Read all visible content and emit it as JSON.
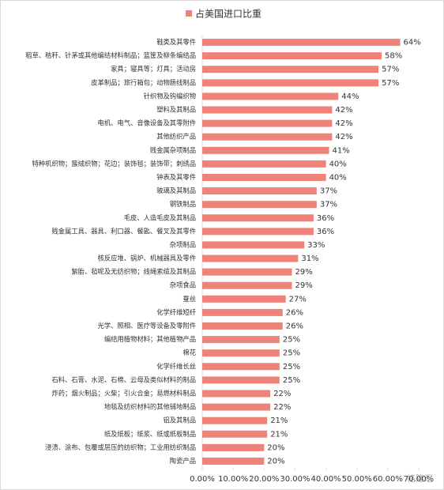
{
  "chart_data": {
    "type": "barh",
    "legend": "占美国进口比重",
    "color": "#ef8279",
    "watermark": "格隆汇",
    "categories": [
      "鞋类及其零件",
      "稻草、秸秆、针茅或其他编结材料制品；篮筐及柳条编结品",
      "家具；寝具等；灯具；活动房",
      "皮革制品；旅行箱包；动物肠线制品",
      "针织物及钩编织物",
      "塑料及其制品",
      "电机、电气、音像设备及其零附件",
      "其他纺织产品",
      "贱金属杂项制品",
      "特种机织物；簇绒织物；花边；装饰毯；装饰带；刺绣品",
      "钟表及其零件",
      "玻璃及其制品",
      "钢铁制品",
      "毛皮、人造毛皮及其制品",
      "贱金属工具、器具、利口器、餐匙、餐叉及其零件",
      "杂项制品",
      "核反应堆、锅炉、机械器具及零件",
      "絮胎、毡呢及无纺织物；线绳索缆及其制品",
      "杂项食品",
      "蚕丝",
      "化学纤维短纤",
      "光学、照相、医疗等设备及零附件",
      "编结用植物材料；其他植物产品",
      "棉花",
      "化学纤维长丝",
      "石料、石膏、水泥、石棉、云母及类似材料的制品",
      "炸药；烟火制品；火柴；引火合金；易燃材料制品",
      "地毯及纺织材料的其他铺地制品",
      "铝及其制品",
      "纸及纸板；纸浆、纸或纸板制品",
      "浸渍、涂布、包覆或层压的纺织物；工业用纺织制品",
      "陶瓷产品"
    ],
    "values": [
      64,
      58,
      57,
      57,
      44,
      42,
      42,
      42,
      41,
      40,
      40,
      37,
      37,
      36,
      36,
      33,
      31,
      29,
      29,
      27,
      26,
      26,
      25,
      25,
      25,
      25,
      22,
      22,
      21,
      21,
      20,
      20
    ],
    "value_labels": [
      "64%",
      "58%",
      "57%",
      "57%",
      "44%",
      "42%",
      "42%",
      "42%",
      "41%",
      "40%",
      "40%",
      "37%",
      "37%",
      "36%",
      "36%",
      "33%",
      "31%",
      "29%",
      "29%",
      "27%",
      "26%",
      "26%",
      "25%",
      "25%",
      "25%",
      "25%",
      "22%",
      "22%",
      "21%",
      "21%",
      "20%",
      "20%"
    ],
    "xlim": [
      0,
      70
    ],
    "xticks": [
      {
        "value": 0,
        "label": "0.00%"
      },
      {
        "value": 10,
        "label": "10.00%"
      },
      {
        "value": 20,
        "label": "20.00%"
      },
      {
        "value": 30,
        "label": "30.00%"
      },
      {
        "value": 40,
        "label": "40.00%"
      },
      {
        "value": 50,
        "label": "50.00%"
      },
      {
        "value": 60,
        "label": "60.00%"
      },
      {
        "value": 70,
        "label": "70.00%"
      }
    ]
  }
}
